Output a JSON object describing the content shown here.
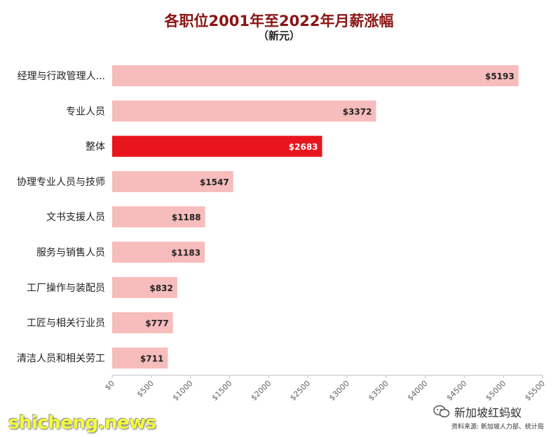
{
  "header": {
    "title": "各职位2001年至2022年月薪涨幅",
    "subtitle": "（新元）"
  },
  "chart_data": {
    "type": "bar",
    "orientation": "horizontal",
    "title": "各职位2001年至2022年月薪涨幅",
    "subtitle": "（新元）",
    "categories": [
      "经理与行政管理人...",
      "专业人员",
      "整体",
      "协理专业人员与技师",
      "文书支援人员",
      "服务与销售人员",
      "工厂操作与装配员",
      "工匠与相关行业员",
      "清洁人员和相关劳工"
    ],
    "values": [
      5193,
      3372,
      2683,
      1547,
      1188,
      1183,
      832,
      777,
      711
    ],
    "value_labels": [
      "$5193",
      "$3372",
      "$2683",
      "$1547",
      "$1188",
      "$1183",
      "$832",
      "$777",
      "$711"
    ],
    "highlight_index": 2,
    "xlim": [
      0,
      5500
    ],
    "xticks": [
      0,
      500,
      1000,
      1500,
      2000,
      2500,
      3000,
      3500,
      4000,
      4500,
      5000,
      5500
    ],
    "xtick_labels": [
      "$0",
      "$500",
      "$1000",
      "$1500",
      "$2000",
      "$2500",
      "$3000",
      "$3500",
      "$4000",
      "$4500",
      "$5000",
      "$5500"
    ],
    "xlabel": "",
    "ylabel": "",
    "grid": false,
    "colors": {
      "bar": "#f7bcbc",
      "highlight": "#e8161c",
      "axis": "#bdbdbd",
      "label": "#222222"
    }
  },
  "footer": {
    "watermark": "shicheng.news",
    "wechat_account": "新加坡红蚂蚁",
    "wechat_icon": "wechat-icon",
    "source": "资料来源: 新加坡人力部、统计局"
  }
}
